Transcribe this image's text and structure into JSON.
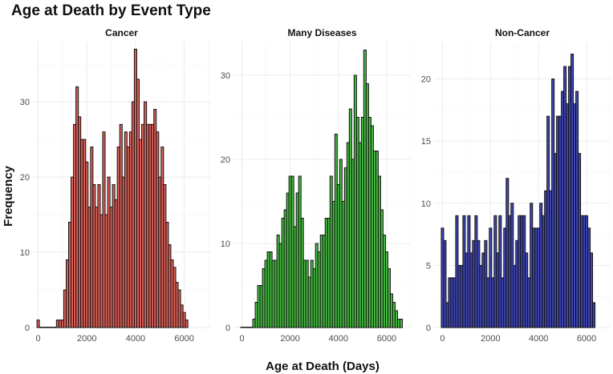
{
  "chart_data": {
    "type": "bar",
    "title": "Age at Death by Event Type",
    "xlabel": "Age at Death (Days)",
    "ylabel": "Frequency",
    "bin_width_days": 100,
    "first_bin_start_days": -50,
    "facets": [
      {
        "name": "Cancer",
        "fill": "#e0625a",
        "xlim": [
          -250,
          7100
        ],
        "ylim": [
          0,
          38
        ],
        "x_ticks": [
          0,
          2000,
          4000,
          6000
        ],
        "x_tick_labels": [
          "0",
          "2000",
          "4000",
          "6000"
        ],
        "y_ticks": [
          0,
          10,
          20,
          30
        ],
        "y_tick_labels": [
          "0",
          "10",
          "20",
          "30"
        ],
        "counts": [
          1,
          0,
          0,
          0,
          0,
          0,
          0,
          0,
          1,
          1,
          1,
          5,
          9,
          14,
          20,
          27,
          32,
          28,
          25,
          25,
          22,
          16,
          24,
          19,
          16,
          19,
          15,
          26,
          15,
          20,
          16,
          19,
          17,
          24,
          27,
          20,
          26,
          24,
          26,
          30,
          37,
          33,
          25,
          27,
          30,
          27,
          27,
          27,
          29,
          26,
          20,
          24,
          19,
          14,
          11,
          9,
          8,
          6,
          5,
          3,
          2,
          1
        ]
      },
      {
        "name": "Many Diseases",
        "fill": "#47c043",
        "xlim": [
          -350,
          7000
        ],
        "ylim": [
          0,
          34
        ],
        "x_ticks": [
          0,
          2000,
          4000,
          6000
        ],
        "x_tick_labels": [
          "0",
          "2000",
          "4000",
          "6000"
        ],
        "y_ticks": [
          0,
          10,
          20,
          30
        ],
        "y_tick_labels": [
          "0",
          "10",
          "20",
          "30"
        ],
        "counts": [
          0,
          0,
          0,
          0,
          0,
          1,
          3,
          5,
          5,
          7,
          8,
          9,
          9,
          8,
          8,
          11,
          10,
          13,
          14,
          16,
          18,
          18,
          12,
          16,
          18,
          13,
          8,
          8,
          6,
          8,
          7,
          10,
          9,
          11,
          11,
          13,
          13,
          18,
          15,
          23,
          17,
          20,
          15,
          19,
          22,
          26,
          20,
          30,
          25,
          22,
          25,
          33,
          29,
          25,
          24,
          21,
          21,
          18,
          14,
          11,
          9,
          7,
          4,
          3,
          2,
          1,
          1
        ]
      },
      {
        "name": "Non-Cancer",
        "fill": "#4047b8",
        "xlim": [
          -350,
          7000
        ],
        "ylim": [
          0,
          23
        ],
        "x_ticks": [
          0,
          2000,
          4000,
          6000
        ],
        "x_tick_labels": [
          "0",
          "2000",
          "4000",
          "6000"
        ],
        "y_ticks": [
          0,
          5,
          10,
          15,
          20
        ],
        "y_tick_labels": [
          "0",
          "5",
          "10",
          "15",
          "20"
        ],
        "counts": [
          8,
          7,
          2,
          4,
          4,
          4,
          9,
          5,
          5,
          9,
          6,
          9,
          6,
          7,
          9,
          7,
          5,
          6,
          7,
          4,
          8,
          4,
          9,
          6,
          9,
          4,
          8,
          12,
          9,
          10,
          5,
          7,
          9,
          9,
          9,
          6,
          4,
          10,
          8,
          8,
          8,
          10,
          9,
          11,
          17,
          11,
          20,
          14,
          17,
          17,
          19,
          21,
          18,
          21,
          22,
          18,
          19,
          14,
          9,
          9,
          9,
          8,
          6,
          2
        ]
      }
    ]
  }
}
